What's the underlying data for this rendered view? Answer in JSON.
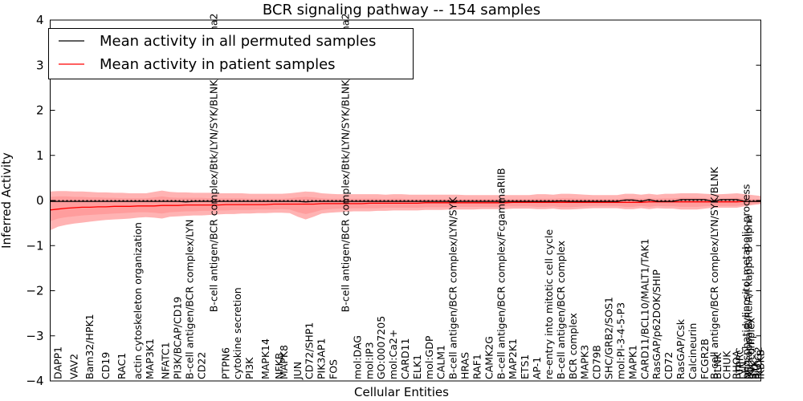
{
  "chart_data": {
    "type": "line",
    "title": "BCR signaling pathway -- 154 samples",
    "xlabel": "Cellular Entities",
    "ylabel": "Inferred Activity",
    "ylim": [
      -4,
      4
    ],
    "yticks": [
      "4",
      "3",
      "2",
      "1",
      "0",
      "−1",
      "−2",
      "−3",
      "−4"
    ],
    "legend_position": "top-left",
    "series": [
      {
        "name": "Mean activity in all permuted samples",
        "color": "#000000"
      },
      {
        "name": "Mean activity in patient samples",
        "color": "#ff0000",
        "band_color": "#ff9999"
      }
    ],
    "x": [
      0,
      1,
      2,
      3,
      4,
      5,
      6,
      7,
      8,
      9,
      10,
      11,
      12,
      13,
      14,
      15,
      16,
      17,
      18,
      19,
      20,
      21,
      22,
      23,
      24,
      25,
      26,
      27,
      28,
      29,
      30,
      31,
      32,
      33,
      34,
      35,
      36,
      37,
      38,
      39,
      40,
      41,
      42,
      43,
      44,
      45,
      46,
      47,
      48,
      49,
      50,
      51,
      52,
      53,
      54,
      55,
      56,
      57,
      58,
      59,
      60,
      61,
      62,
      63,
      64,
      65,
      66,
      67,
      68,
      69,
      70,
      71,
      72,
      73,
      74,
      75,
      76,
      77,
      78,
      79,
      80,
      81,
      82,
      83,
      84,
      85,
      86,
      87,
      88,
      89
    ],
    "permuted_mean": [
      -0.02,
      -0.02,
      -0.02,
      -0.02,
      -0.02,
      -0.02,
      -0.02,
      -0.02,
      -0.02,
      -0.02,
      -0.02,
      -0.02,
      -0.02,
      -0.02,
      -0.02,
      -0.02,
      -0.02,
      -0.03,
      -0.02,
      -0.02,
      -0.02,
      -0.02,
      -0.02,
      -0.02,
      -0.02,
      -0.02,
      -0.02,
      -0.02,
      -0.02,
      -0.02,
      -0.02,
      -0.02,
      -0.03,
      -0.02,
      -0.02,
      -0.02,
      -0.02,
      -0.02,
      -0.02,
      -0.02,
      -0.02,
      -0.02,
      -0.02,
      -0.02,
      -0.02,
      -0.02,
      -0.02,
      -0.02,
      -0.02,
      -0.02,
      -0.02,
      -0.02,
      -0.02,
      -0.02,
      -0.02,
      -0.02,
      -0.02,
      -0.02,
      -0.02,
      -0.02,
      -0.02,
      -0.02,
      -0.02,
      -0.02,
      -0.01,
      -0.02,
      -0.02,
      -0.02,
      -0.02,
      -0.02,
      -0.02,
      -0.02,
      0.01,
      0.01,
      -0.02,
      0.02,
      -0.02,
      -0.02,
      -0.02,
      0.02,
      0.02,
      0.02,
      0.02,
      -0.02,
      0.02,
      0.02,
      0.02,
      -0.02,
      -0.02,
      -0.02
    ],
    "patient_mean": [
      -0.21,
      -0.19,
      -0.17,
      -0.16,
      -0.15,
      -0.15,
      -0.14,
      -0.14,
      -0.13,
      -0.13,
      -0.13,
      -0.12,
      -0.12,
      -0.12,
      -0.11,
      -0.11,
      -0.11,
      -0.1,
      -0.1,
      -0.1,
      -0.1,
      -0.1,
      -0.09,
      -0.09,
      -0.09,
      -0.09,
      -0.09,
      -0.09,
      -0.08,
      -0.08,
      -0.08,
      -0.08,
      -0.08,
      -0.08,
      -0.07,
      -0.07,
      -0.07,
      -0.07,
      -0.07,
      -0.07,
      -0.06,
      -0.06,
      -0.06,
      -0.06,
      -0.06,
      -0.06,
      -0.06,
      -0.05,
      -0.05,
      -0.05,
      -0.05,
      -0.05,
      -0.05,
      -0.05,
      -0.05,
      -0.05,
      -0.05,
      -0.05,
      -0.04,
      -0.04,
      -0.04,
      -0.04,
      -0.04,
      -0.04,
      -0.04,
      -0.04,
      -0.04,
      -0.04,
      -0.04,
      -0.04,
      -0.04,
      -0.04,
      -0.04,
      -0.04,
      -0.04,
      -0.03,
      -0.03,
      -0.03,
      -0.03,
      -0.03,
      -0.03,
      -0.03,
      -0.03,
      -0.03,
      -0.03,
      -0.03,
      -0.03,
      -0.02,
      -0.02,
      -0.02
    ],
    "band_outer_upper": [
      0.2,
      0.21,
      0.21,
      0.2,
      0.2,
      0.19,
      0.18,
      0.18,
      0.17,
      0.17,
      0.16,
      0.16,
      0.16,
      0.19,
      0.22,
      0.19,
      0.18,
      0.18,
      0.17,
      0.17,
      0.17,
      0.16,
      0.16,
      0.16,
      0.16,
      0.15,
      0.15,
      0.15,
      0.15,
      0.15,
      0.16,
      0.18,
      0.2,
      0.19,
      0.16,
      0.15,
      0.14,
      0.14,
      0.14,
      0.14,
      0.14,
      0.14,
      0.13,
      0.14,
      0.14,
      0.13,
      0.13,
      0.13,
      0.13,
      0.13,
      0.13,
      0.13,
      0.12,
      0.12,
      0.12,
      0.12,
      0.12,
      0.12,
      0.12,
      0.12,
      0.12,
      0.14,
      0.14,
      0.13,
      0.15,
      0.15,
      0.14,
      0.13,
      0.12,
      0.12,
      0.12,
      0.12,
      0.15,
      0.15,
      0.13,
      0.15,
      0.13,
      0.15,
      0.15,
      0.16,
      0.16,
      0.16,
      0.15,
      0.14,
      0.14,
      0.15,
      0.16,
      0.14,
      0.12,
      0.1
    ],
    "band_inner_upper": [
      0.08,
      0.09,
      0.09,
      0.08,
      0.08,
      0.07,
      0.07,
      0.06,
      0.06,
      0.05,
      0.05,
      0.05,
      0.05,
      0.07,
      0.09,
      0.07,
      0.06,
      0.06,
      0.06,
      0.06,
      0.05,
      0.05,
      0.05,
      0.05,
      0.05,
      0.04,
      0.04,
      0.04,
      0.04,
      0.04,
      0.05,
      0.07,
      0.08,
      0.07,
      0.05,
      0.04,
      0.04,
      0.04,
      0.04,
      0.04,
      0.04,
      0.04,
      0.03,
      0.04,
      0.04,
      0.03,
      0.03,
      0.03,
      0.03,
      0.03,
      0.03,
      0.03,
      0.03,
      0.03,
      0.03,
      0.03,
      0.03,
      0.03,
      0.03,
      0.03,
      0.03,
      0.04,
      0.04,
      0.04,
      0.05,
      0.05,
      0.04,
      0.04,
      0.03,
      0.03,
      0.03,
      0.03,
      0.05,
      0.05,
      0.04,
      0.05,
      0.04,
      0.05,
      0.05,
      0.06,
      0.06,
      0.06,
      0.05,
      0.04,
      0.04,
      0.05,
      0.06,
      0.04,
      0.03,
      0.02
    ],
    "band_inner_lower": [
      -0.46,
      -0.4,
      -0.37,
      -0.35,
      -0.33,
      -0.32,
      -0.31,
      -0.3,
      -0.29,
      -0.28,
      -0.27,
      -0.26,
      -0.26,
      -0.27,
      -0.29,
      -0.26,
      -0.25,
      -0.24,
      -0.24,
      -0.23,
      -0.23,
      -0.22,
      -0.22,
      -0.21,
      -0.21,
      -0.21,
      -0.2,
      -0.2,
      -0.2,
      -0.19,
      -0.2,
      -0.26,
      -0.3,
      -0.26,
      -0.21,
      -0.19,
      -0.18,
      -0.18,
      -0.17,
      -0.17,
      -0.17,
      -0.17,
      -0.16,
      -0.16,
      -0.16,
      -0.16,
      -0.16,
      -0.15,
      -0.15,
      -0.15,
      -0.15,
      -0.14,
      -0.14,
      -0.14,
      -0.14,
      -0.14,
      -0.14,
      -0.13,
      -0.13,
      -0.13,
      -0.13,
      -0.14,
      -0.14,
      -0.13,
      -0.15,
      -0.15,
      -0.14,
      -0.13,
      -0.12,
      -0.12,
      -0.12,
      -0.12,
      -0.14,
      -0.14,
      -0.12,
      -0.14,
      -0.12,
      -0.13,
      -0.13,
      -0.14,
      -0.14,
      -0.14,
      -0.13,
      -0.12,
      -0.12,
      -0.12,
      -0.12,
      -0.1,
      -0.08,
      -0.06
    ],
    "band_outer_lower": [
      -0.66,
      -0.58,
      -0.54,
      -0.51,
      -0.49,
      -0.47,
      -0.45,
      -0.43,
      -0.42,
      -0.41,
      -0.4,
      -0.38,
      -0.37,
      -0.38,
      -0.4,
      -0.36,
      -0.35,
      -0.34,
      -0.33,
      -0.33,
      -0.32,
      -0.31,
      -0.3,
      -0.3,
      -0.29,
      -0.29,
      -0.28,
      -0.28,
      -0.27,
      -0.27,
      -0.28,
      -0.36,
      -0.42,
      -0.36,
      -0.29,
      -0.27,
      -0.26,
      -0.25,
      -0.24,
      -0.24,
      -0.24,
      -0.23,
      -0.23,
      -0.22,
      -0.22,
      -0.22,
      -0.22,
      -0.21,
      -0.21,
      -0.21,
      -0.2,
      -0.2,
      -0.2,
      -0.2,
      -0.19,
      -0.19,
      -0.19,
      -0.19,
      -0.18,
      -0.18,
      -0.18,
      -0.19,
      -0.19,
      -0.18,
      -0.2,
      -0.2,
      -0.19,
      -0.18,
      -0.17,
      -0.17,
      -0.17,
      -0.17,
      -0.19,
      -0.19,
      -0.17,
      -0.19,
      -0.17,
      -0.18,
      -0.18,
      -0.2,
      -0.2,
      -0.2,
      -0.18,
      -0.16,
      -0.16,
      -0.16,
      -0.16,
      -0.13,
      -0.1,
      -0.08
    ],
    "entity_labels": [
      {
        "text": "DAPP1",
        "x": 1,
        "pos": "bottom"
      },
      {
        "text": "VAV2",
        "x": 3,
        "pos": "bottom"
      },
      {
        "text": "Bam32/HPK1",
        "x": 5,
        "pos": "bottom"
      },
      {
        "text": "CD19",
        "x": 7,
        "pos": "bottom"
      },
      {
        "text": "RAC1",
        "x": 9,
        "pos": "bottom"
      },
      {
        "text": "actin cytoskeleton organization",
        "x": 11,
        "pos": "bottom"
      },
      {
        "text": "MAP3K1",
        "x": 12.5,
        "pos": "bottom"
      },
      {
        "text": "NFATC1",
        "x": 14.5,
        "pos": "bottom"
      },
      {
        "text": "PI3K/BCAP/CD19",
        "x": 16,
        "pos": "bottom"
      },
      {
        "text": "B-cell antigen/BCR complex/LYN",
        "x": 17.5,
        "pos": "bottom"
      },
      {
        "text": "CD22",
        "x": 19,
        "pos": "bottom"
      },
      {
        "text": "B-cell antigen/BCR complex/Btk/LYN/SYK/BLNK/PLCgamma2",
        "x": 20.5,
        "pos": "top"
      },
      {
        "text": "PTPN6",
        "x": 22,
        "pos": "bottom"
      },
      {
        "text": "cytokine secretion",
        "x": 23.5,
        "pos": "bottom"
      },
      {
        "text": "PI3K",
        "x": 25,
        "pos": "bottom"
      },
      {
        "text": "MAPK14",
        "x": 27,
        "pos": "bottom"
      },
      {
        "text": "NFKB",
        "x": 28.7,
        "pos": "bottom"
      },
      {
        "text": "MAPK8",
        "x": 29.3,
        "pos": "bottom"
      },
      {
        "text": "JUN",
        "x": 31,
        "pos": "bottom"
      },
      {
        "text": "CD72/SHP1",
        "x": 32.5,
        "pos": "bottom"
      },
      {
        "text": "PIK3AP1",
        "x": 34,
        "pos": "bottom"
      },
      {
        "text": "FOS",
        "x": 35.5,
        "pos": "bottom"
      },
      {
        "text": "B-cell antigen/BCR complex/Btk/LYN/SYK/BLNK/PLCgamma2",
        "x": 37,
        "pos": "top"
      },
      {
        "text": "mol:DAG",
        "x": 38.5,
        "pos": "bottom"
      },
      {
        "text": "mol:IP3",
        "x": 40,
        "pos": "bottom"
      },
      {
        "text": "GO:0007205",
        "x": 41.5,
        "pos": "bottom"
      },
      {
        "text": "mol:Ca2+",
        "x": 43,
        "pos": "bottom"
      },
      {
        "text": "CARD11",
        "x": 44.5,
        "pos": "bottom"
      },
      {
        "text": "ELK1",
        "x": 46,
        "pos": "bottom"
      },
      {
        "text": "mol:GDP",
        "x": 47.5,
        "pos": "bottom"
      },
      {
        "text": "CALM1",
        "x": 49,
        "pos": "bottom"
      },
      {
        "text": "B-cell antigen/BCR complex/LYN/SYK",
        "x": 50.5,
        "pos": "bottom"
      },
      {
        "text": "HRAS",
        "x": 52,
        "pos": "bottom"
      },
      {
        "text": "RAF1",
        "x": 53.5,
        "pos": "bottom"
      },
      {
        "text": "CAMK2G",
        "x": 55,
        "pos": "bottom"
      },
      {
        "text": "B-cell antigen/BCR complex/FcgammaRIIB",
        "x": 56.5,
        "pos": "bottom"
      },
      {
        "text": "MAP2K1",
        "x": 58,
        "pos": "bottom"
      },
      {
        "text": "ETS1",
        "x": 59.5,
        "pos": "bottom"
      },
      {
        "text": "AP-1",
        "x": 61,
        "pos": "bottom"
      },
      {
        "text": "re-entry into mitotic cell cycle",
        "x": 62.5,
        "pos": "bottom"
      },
      {
        "text": "B-cell antigen/BCR complex",
        "x": 64,
        "pos": "bottom"
      },
      {
        "text": "BCR complex",
        "x": 65.5,
        "pos": "bottom"
      },
      {
        "text": "MAPK3",
        "x": 67,
        "pos": "bottom"
      },
      {
        "text": "CD79B",
        "x": 68.5,
        "pos": "bottom"
      },
      {
        "text": "SHC/GRB2/SOS1",
        "x": 70,
        "pos": "bottom"
      },
      {
        "text": "mol:PI-3-4-5-P3",
        "x": 71.5,
        "pos": "bottom"
      },
      {
        "text": "MAPK1",
        "x": 73,
        "pos": "bottom"
      },
      {
        "text": "CARD11/BCL10/MALT1/TAK1",
        "x": 74.5,
        "pos": "bottom"
      },
      {
        "text": "RasGAP/p62DOK/SHIP",
        "x": 76,
        "pos": "bottom"
      },
      {
        "text": "CD72",
        "x": 77.5,
        "pos": "bottom"
      },
      {
        "text": "RasGAP/Csk",
        "x": 79,
        "pos": "bottom"
      },
      {
        "text": "Calcineurin",
        "x": 80.5,
        "pos": "bottom"
      },
      {
        "text": "FCGR2B",
        "x": 82,
        "pos": "bottom"
      },
      {
        "text": "B-cell antigen/BCR complex/LYN/SYK/BLNK",
        "x": 83.2,
        "pos": "bottom"
      },
      {
        "text": "BLNK",
        "x": 83.6,
        "pos": "bottom"
      },
      {
        "text": "CHUK",
        "x": 84.8,
        "pos": "bottom"
      },
      {
        "text": "RHOA",
        "x": 86,
        "pos": "bottom"
      },
      {
        "text": "PTPRC",
        "x": 86.4,
        "pos": "bottom"
      },
      {
        "text": "LYN",
        "x": 86.8,
        "pos": "bottom"
      },
      {
        "text": "phosphatidylinositol metabolic process",
        "x": 87.2,
        "pos": "bottom"
      },
      {
        "text": "NF-kappa-B/RelA/I kappa B alpha",
        "x": 87.5,
        "pos": "bottom"
      },
      {
        "text": "IKK complex",
        "x": 87.8,
        "pos": "bottom"
      },
      {
        "text": "SYK",
        "x": 88.1,
        "pos": "bottom"
      },
      {
        "text": "BTK",
        "x": 88.4,
        "pos": "bottom"
      },
      {
        "text": "PLCG2",
        "x": 88.7,
        "pos": "bottom"
      },
      {
        "text": "IKBKB",
        "x": 89,
        "pos": "bottom"
      }
    ]
  }
}
